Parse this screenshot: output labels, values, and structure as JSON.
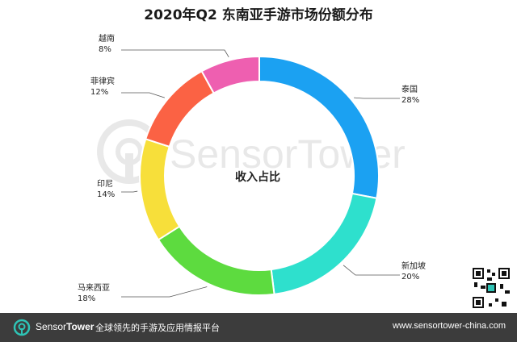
{
  "chart_data": {
    "type": "pie",
    "title": "2020年Q2 东南亚手游市场份额分布",
    "center_label": "收入占比",
    "slices": [
      {
        "label": "泰国",
        "value": 28,
        "value_label": "28%",
        "color": "#1ba1f2"
      },
      {
        "label": "新加坡",
        "value": 20,
        "value_label": "20%",
        "color": "#2ee0cd"
      },
      {
        "label": "马来西亚",
        "value": 18,
        "value_label": "18%",
        "color": "#5ddb3f"
      },
      {
        "label": "印尼",
        "value": 14,
        "value_label": "14%",
        "color": "#f7df3a"
      },
      {
        "label": "菲律宾",
        "value": 12,
        "value_label": "12%",
        "color": "#fb6244"
      },
      {
        "label": "越南",
        "value": 8,
        "value_label": "8%",
        "color": "#ee5fb0"
      }
    ]
  },
  "watermark": {
    "text": "SensorTower"
  },
  "footer": {
    "brand_prefix": "Sensor",
    "brand_suffix": "Tower",
    "tagline": "全球领先的手游及应用情报平台",
    "url": "www.sensortower-china.com",
    "logo_icon": "sensortower-logo-icon",
    "background_color": "#3c3c3c"
  },
  "qr_code": {
    "icon": "qr-code-icon"
  }
}
